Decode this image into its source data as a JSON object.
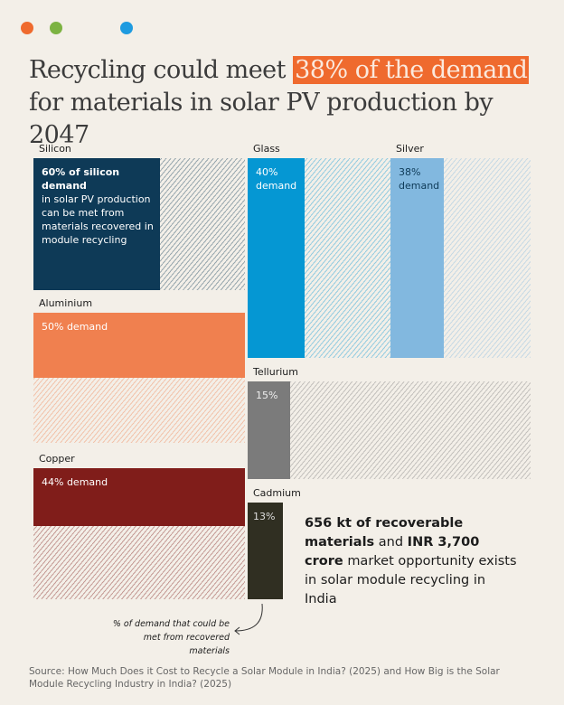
{
  "title": {
    "before": "Recycling could meet",
    "highlight": "38% of the demand",
    "after": "for materials in solar PV production by 2047"
  },
  "chart_data": {
    "type": "proportion-blocks",
    "materials": [
      {
        "name": "Silicon",
        "value": 60,
        "value_label": "60% of silicon demand",
        "note": "in solar PV production can be met from materials recovered in module recycling",
        "color": "#0e3a57"
      },
      {
        "name": "Glass",
        "value": 40,
        "value_label": "40% demand",
        "color": "#0597d3"
      },
      {
        "name": "Silver",
        "value": 38,
        "value_label": "38% demand",
        "color": "#82b8df"
      },
      {
        "name": "Aluminium",
        "value": 50,
        "value_label": "50% demand",
        "color": "#f0804f"
      },
      {
        "name": "Tellurium",
        "value": 15,
        "value_label": "15%",
        "color": "#7b7b7b"
      },
      {
        "name": "Copper",
        "value": 44,
        "value_label": "44% demand",
        "color": "#801d1a"
      },
      {
        "name": "Cadmium",
        "value": 13,
        "value_label": "13%",
        "color": "#302f22"
      }
    ],
    "annotation": "% of demand that could be met from recovered materials"
  },
  "callout": {
    "bold_1": "656 kt of recoverable materials",
    "text_1": "and",
    "bold_2": "INR 3,700 crore",
    "text_2": "market opportunity exists in solar module recycling in India"
  },
  "source": "Source: How Much Does it Cost to Recycle a Solar Module in India? (2025) and How Big is the Solar Module Recycling Industry in India? (2025)"
}
